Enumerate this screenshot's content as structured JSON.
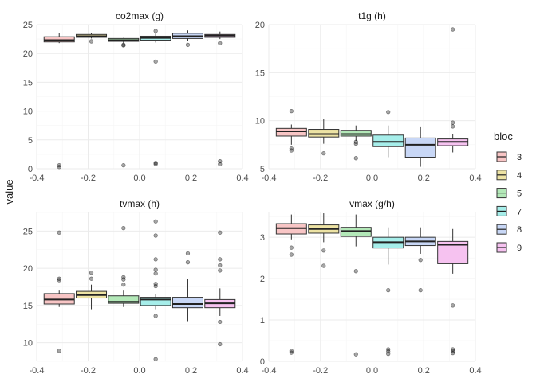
{
  "chart_data": {
    "type": "boxplot",
    "xlabel": "",
    "ylabel": "value",
    "xlim": [
      -0.4,
      0.4
    ],
    "x_ticks": [
      "-0.4",
      "-0.2",
      "0.0",
      "0.2",
      "0.4"
    ],
    "grid": true,
    "legend": {
      "title": "bloc",
      "placement": "right",
      "entries": [
        {
          "label": "3",
          "fill": "#f8c5c5"
        },
        {
          "label": "4",
          "fill": "#ede3a4"
        },
        {
          "label": "5",
          "fill": "#b3e8b8"
        },
        {
          "label": "7",
          "fill": "#a6eeea"
        },
        {
          "label": "8",
          "fill": "#c8d7f6"
        },
        {
          "label": "9",
          "fill": "#f6c2f0"
        }
      ]
    },
    "panels": [
      {
        "title": "co2max (g)",
        "ylim": [
          0,
          25
        ],
        "y_ticks": [
          0,
          5,
          10,
          15,
          20,
          25
        ],
        "boxes": [
          {
            "bloc": "3",
            "x": -0.3125,
            "q1": 22.0,
            "median": 22.3,
            "q3": 22.9,
            "whisker_low": 21.8,
            "whisker_high": 23.5,
            "outliers": [
              0.3,
              0.6
            ]
          },
          {
            "bloc": "4",
            "x": -0.1875,
            "q1": 22.8,
            "median": 23.0,
            "q3": 23.3,
            "whisker_low": 22.6,
            "whisker_high": 23.6,
            "outliers": [
              22.1
            ]
          },
          {
            "bloc": "5",
            "x": -0.0625,
            "q1": 22.1,
            "median": 22.3,
            "q3": 22.6,
            "whisker_low": 21.8,
            "whisker_high": 22.7,
            "outliers": [
              21.4,
              21.5,
              0.6
            ]
          },
          {
            "bloc": "7",
            "x": 0.0625,
            "q1": 22.3,
            "median": 22.7,
            "q3": 23.0,
            "whisker_low": 21.9,
            "whisker_high": 23.5,
            "outliers": [
              23.9,
              18.6,
              0.8,
              1.0
            ]
          },
          {
            "bloc": "8",
            "x": 0.1875,
            "q1": 22.6,
            "median": 23.0,
            "q3": 23.5,
            "whisker_low": 22.2,
            "whisker_high": 24.0,
            "outliers": [
              21.5
            ]
          },
          {
            "bloc": "9",
            "x": 0.3125,
            "q1": 22.8,
            "median": 23.1,
            "q3": 23.3,
            "whisker_low": 22.5,
            "whisker_high": 23.8,
            "outliers": [
              21.8,
              0.8,
              1.3
            ]
          }
        ]
      },
      {
        "title": "t1g (h)",
        "ylim": [
          5,
          20
        ],
        "y_ticks": [
          5,
          10,
          15,
          20
        ],
        "boxes": [
          {
            "bloc": "3",
            "x": -0.3125,
            "q1": 8.4,
            "median": 8.9,
            "q3": 9.2,
            "whisker_low": 7.5,
            "whisker_high": 9.6,
            "outliers": [
              11.0,
              7.1,
              6.9
            ]
          },
          {
            "bloc": "4",
            "x": -0.1875,
            "q1": 8.3,
            "median": 8.6,
            "q3": 9.1,
            "whisker_low": 7.6,
            "whisker_high": 10.2,
            "outliers": [
              6.6
            ]
          },
          {
            "bloc": "5",
            "x": -0.0625,
            "q1": 8.4,
            "median": 8.6,
            "q3": 9.0,
            "whisker_low": 7.9,
            "whisker_high": 9.5,
            "outliers": [
              7.6,
              7.8,
              6.1
            ]
          },
          {
            "bloc": "7",
            "x": 0.0625,
            "q1": 7.3,
            "median": 7.8,
            "q3": 8.5,
            "whisker_low": 6.2,
            "whisker_high": 9.5,
            "outliers": [
              10.9
            ]
          },
          {
            "bloc": "8",
            "x": 0.1875,
            "q1": 6.2,
            "median": 7.5,
            "q3": 8.2,
            "whisker_low": 5.2,
            "whisker_high": 9.4,
            "outliers": []
          },
          {
            "bloc": "9",
            "x": 0.3125,
            "q1": 7.4,
            "median": 7.8,
            "q3": 8.1,
            "whisker_low": 6.7,
            "whisker_high": 8.6,
            "outliers": [
              9.4,
              9.8,
              19.5
            ]
          }
        ]
      },
      {
        "title": "tvmax (h)",
        "ylim": [
          7.5,
          27.5
        ],
        "y_ticks": [
          10,
          15,
          20,
          25
        ],
        "boxes": [
          {
            "bloc": "3",
            "x": -0.3125,
            "q1": 15.2,
            "median": 15.8,
            "q3": 16.6,
            "whisker_low": 14.8,
            "whisker_high": 17.0,
            "outliers": [
              24.8,
              18.6,
              18.4,
              8.9
            ]
          },
          {
            "bloc": "4",
            "x": -0.1875,
            "q1": 16.0,
            "median": 16.4,
            "q3": 16.9,
            "whisker_low": 14.5,
            "whisker_high": 17.8,
            "outliers": [
              19.4,
              18.6
            ]
          },
          {
            "bloc": "5",
            "x": -0.0625,
            "q1": 15.3,
            "median": 15.5,
            "q3": 16.3,
            "whisker_low": 14.8,
            "whisker_high": 17.0,
            "outliers": [
              25.4,
              18.8,
              18.5,
              17.8
            ]
          },
          {
            "bloc": "7",
            "x": 0.0625,
            "q1": 15.0,
            "median": 15.8,
            "q3": 16.1,
            "whisker_low": 14.5,
            "whisker_high": 16.5,
            "outliers": [
              26.3,
              24.4,
              21.2,
              19.8,
              19.3,
              17.9,
              17.6,
              13.6,
              7.8
            ]
          },
          {
            "bloc": "8",
            "x": 0.1875,
            "q1": 14.7,
            "median": 15.2,
            "q3": 16.1,
            "whisker_low": 12.9,
            "whisker_high": 18.6,
            "outliers": [
              22.0,
              20.8
            ]
          },
          {
            "bloc": "9",
            "x": 0.3125,
            "q1": 14.7,
            "median": 15.3,
            "q3": 15.8,
            "whisker_low": 13.6,
            "whisker_high": 17.3,
            "outliers": [
              24.8,
              21.2,
              20.4,
              19.7,
              12.8,
              9.8
            ]
          }
        ]
      },
      {
        "title": "vmax (g/h)",
        "ylim": [
          0,
          3.6
        ],
        "y_ticks": [
          0,
          1,
          2,
          3
        ],
        "boxes": [
          {
            "bloc": "3",
            "x": -0.3125,
            "q1": 3.08,
            "median": 3.22,
            "q3": 3.33,
            "whisker_low": 2.95,
            "whisker_high": 3.55,
            "outliers": [
              2.75,
              2.58,
              0.25,
              0.21
            ]
          },
          {
            "bloc": "4",
            "x": -0.1875,
            "q1": 3.1,
            "median": 3.2,
            "q3": 3.3,
            "whisker_low": 2.88,
            "whisker_high": 3.58,
            "outliers": [
              2.68,
              2.31
            ]
          },
          {
            "bloc": "5",
            "x": -0.0625,
            "q1": 3.02,
            "median": 3.15,
            "q3": 3.24,
            "whisker_low": 2.78,
            "whisker_high": 3.55,
            "outliers": [
              2.18,
              0.17
            ]
          },
          {
            "bloc": "7",
            "x": 0.0625,
            "q1": 2.74,
            "median": 2.88,
            "q3": 3.0,
            "whisker_low": 2.34,
            "whisker_high": 3.24,
            "outliers": [
              1.72,
              0.29,
              0.24,
              0.18
            ]
          },
          {
            "bloc": "8",
            "x": 0.1875,
            "q1": 2.8,
            "median": 2.9,
            "q3": 3.0,
            "whisker_low": 2.6,
            "whisker_high": 3.24,
            "outliers": [
              2.45,
              1.72
            ]
          },
          {
            "bloc": "9",
            "x": 0.3125,
            "q1": 2.36,
            "median": 2.82,
            "q3": 2.9,
            "whisker_low": 2.12,
            "whisker_high": 3.2,
            "outliers": [
              1.35,
              0.29,
              0.25,
              0.2
            ]
          }
        ]
      }
    ]
  }
}
